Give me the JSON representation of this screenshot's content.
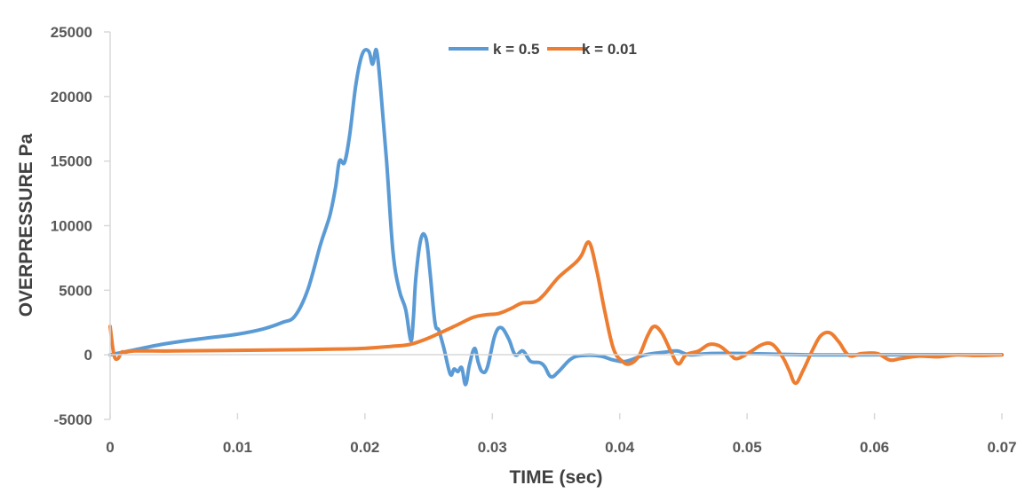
{
  "chart_data": {
    "type": "line",
    "title": "",
    "xlabel": "TIME (sec)",
    "ylabel": "OVERPRESSURE Pa",
    "xlim": [
      0,
      0.07
    ],
    "ylim": [
      -5000,
      25000
    ],
    "x_ticks": [
      "0",
      "0.01",
      "0.02",
      "0.03",
      "0.04",
      "0.05",
      "0.06",
      "0.07"
    ],
    "x_tick_values": [
      0,
      0.01,
      0.02,
      0.03,
      0.04,
      0.05,
      0.06,
      0.07
    ],
    "y_ticks": [
      "-5000",
      "0",
      "5000",
      "10000",
      "15000",
      "20000",
      "25000"
    ],
    "y_tick_values": [
      -5000,
      0,
      5000,
      10000,
      15000,
      20000,
      25000
    ],
    "grid": false,
    "legend_position": "top-center",
    "series": [
      {
        "name": "k = 0.5",
        "color": "#5B9BD5",
        "points": [
          [
            0,
            0
          ],
          [
            0.002,
            400
          ],
          [
            0.004,
            800
          ],
          [
            0.006,
            1100
          ],
          [
            0.008,
            1350
          ],
          [
            0.01,
            1600
          ],
          [
            0.012,
            2000
          ],
          [
            0.0135,
            2500
          ],
          [
            0.0145,
            3000
          ],
          [
            0.0155,
            5000
          ],
          [
            0.0165,
            8500
          ],
          [
            0.017,
            10000
          ],
          [
            0.0173,
            11000
          ],
          [
            0.0177,
            13000
          ],
          [
            0.018,
            15000
          ],
          [
            0.0184,
            14900
          ],
          [
            0.0188,
            17000
          ],
          [
            0.0193,
            21000
          ],
          [
            0.0198,
            23300
          ],
          [
            0.0203,
            23500
          ],
          [
            0.0206,
            22500
          ],
          [
            0.0209,
            23600
          ],
          [
            0.0212,
            21000
          ],
          [
            0.0217,
            15000
          ],
          [
            0.0222,
            8000
          ],
          [
            0.0227,
            5000
          ],
          [
            0.0232,
            3500
          ],
          [
            0.0236,
            1100
          ],
          [
            0.0238,
            2800
          ],
          [
            0.024,
            6000
          ],
          [
            0.0244,
            9000
          ],
          [
            0.0248,
            9000
          ],
          [
            0.0251,
            6500
          ],
          [
            0.0255,
            2500
          ],
          [
            0.0258,
            1900
          ],
          [
            0.0262,
            500
          ],
          [
            0.0267,
            -1500
          ],
          [
            0.027,
            -1100
          ],
          [
            0.0273,
            -1300
          ],
          [
            0.0276,
            -1000
          ],
          [
            0.0279,
            -2300
          ],
          [
            0.0282,
            -800
          ],
          [
            0.0286,
            500
          ],
          [
            0.0289,
            -600
          ],
          [
            0.0292,
            -1300
          ],
          [
            0.0296,
            -1000
          ],
          [
            0.0302,
            1500
          ],
          [
            0.0307,
            2100
          ],
          [
            0.0313,
            1200
          ],
          [
            0.0318,
            0
          ],
          [
            0.0324,
            300
          ],
          [
            0.033,
            -500
          ],
          [
            0.0337,
            -600
          ],
          [
            0.0341,
            -900
          ],
          [
            0.0346,
            -1700
          ],
          [
            0.0352,
            -1300
          ],
          [
            0.0362,
            -300
          ],
          [
            0.0372,
            -50
          ],
          [
            0.0385,
            -100
          ],
          [
            0.0395,
            -400
          ],
          [
            0.0405,
            -500
          ],
          [
            0.042,
            0
          ],
          [
            0.0435,
            200
          ],
          [
            0.0445,
            300
          ],
          [
            0.0455,
            0
          ],
          [
            0.047,
            100
          ],
          [
            0.05,
            100
          ],
          [
            0.055,
            0
          ],
          [
            0.06,
            0
          ],
          [
            0.065,
            0
          ],
          [
            0.07,
            0
          ]
        ]
      },
      {
        "name": "k = 0.01",
        "color": "#ED7D31",
        "points": [
          [
            0,
            2200
          ],
          [
            0.0003,
            0
          ],
          [
            0.0006,
            -300
          ],
          [
            0.0009,
            200
          ],
          [
            0.0012,
            200
          ],
          [
            0.002,
            300
          ],
          [
            0.005,
            300
          ],
          [
            0.01,
            350
          ],
          [
            0.015,
            400
          ],
          [
            0.018,
            450
          ],
          [
            0.02,
            500
          ],
          [
            0.022,
            650
          ],
          [
            0.0235,
            800
          ],
          [
            0.025,
            1300
          ],
          [
            0.027,
            2200
          ],
          [
            0.0285,
            2900
          ],
          [
            0.0295,
            3100
          ],
          [
            0.0305,
            3200
          ],
          [
            0.0315,
            3600
          ],
          [
            0.0323,
            4000
          ],
          [
            0.0333,
            4100
          ],
          [
            0.034,
            4600
          ],
          [
            0.0352,
            6000
          ],
          [
            0.0365,
            7100
          ],
          [
            0.037,
            7700
          ],
          [
            0.0376,
            8700
          ],
          [
            0.0382,
            6500
          ],
          [
            0.0388,
            3500
          ],
          [
            0.0395,
            500
          ],
          [
            0.0402,
            -500
          ],
          [
            0.0408,
            -700
          ],
          [
            0.0415,
            -100
          ],
          [
            0.0422,
            1500
          ],
          [
            0.0427,
            2200
          ],
          [
            0.0433,
            1700
          ],
          [
            0.044,
            300
          ],
          [
            0.0446,
            -700
          ],
          [
            0.0452,
            0
          ],
          [
            0.0462,
            300
          ],
          [
            0.047,
            800
          ],
          [
            0.0478,
            700
          ],
          [
            0.0486,
            100
          ],
          [
            0.0492,
            -300
          ],
          [
            0.0502,
            200
          ],
          [
            0.0512,
            800
          ],
          [
            0.052,
            800
          ],
          [
            0.0528,
            -200
          ],
          [
            0.0533,
            -1200
          ],
          [
            0.0538,
            -2200
          ],
          [
            0.0544,
            -1200
          ],
          [
            0.0552,
            500
          ],
          [
            0.0558,
            1500
          ],
          [
            0.0565,
            1700
          ],
          [
            0.0572,
            1000
          ],
          [
            0.058,
            -50
          ],
          [
            0.059,
            100
          ],
          [
            0.0602,
            100
          ],
          [
            0.0612,
            -400
          ],
          [
            0.062,
            -300
          ],
          [
            0.0635,
            -100
          ],
          [
            0.065,
            -150
          ],
          [
            0.0665,
            0
          ],
          [
            0.068,
            -50
          ],
          [
            0.07,
            0
          ]
        ]
      }
    ]
  }
}
